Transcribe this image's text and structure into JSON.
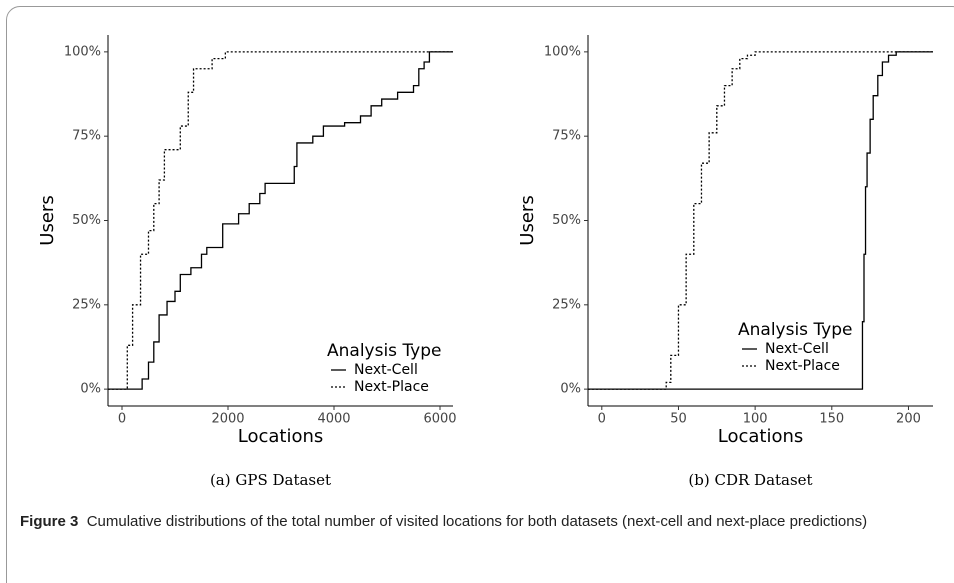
{
  "caption": {
    "label": "Figure 3",
    "text": "Cumulative distributions of the total number of visited locations for both datasets (next-cell and next-place predictions)"
  },
  "chart_data": [
    {
      "type": "step",
      "caption": "(a)  GPS Dataset",
      "x_label": "Locations",
      "y_label": "Users",
      "xlim": [
        -264,
        6245
      ],
      "ylim": [
        -5,
        105
      ],
      "xticks": [
        0,
        2000,
        4000,
        6000
      ],
      "yticks": [
        {
          "value": 0,
          "label": "0%"
        },
        {
          "value": 25,
          "label": "25%"
        },
        {
          "value": 50,
          "label": "50%"
        },
        {
          "value": 75,
          "label": "75%"
        },
        {
          "value": 100,
          "label": "100%"
        }
      ],
      "legend_title": "Analysis Type",
      "legend_position": "bottom-right",
      "series": [
        {
          "name": "Next-Cell",
          "color": "#000000",
          "dash": "solid",
          "x": [
            330,
            380,
            500,
            600,
            700,
            850,
            1000,
            1100,
            1300,
            1500,
            1600,
            1900,
            2200,
            2400,
            2600,
            2700,
            3100,
            3250,
            3300,
            3600,
            3800,
            4200,
            4500,
            4700,
            4900,
            5200,
            5500,
            5600,
            5700,
            5800
          ],
          "values": [
            0,
            3,
            8,
            14,
            22,
            26,
            29,
            34,
            36,
            40,
            42,
            49,
            52,
            55,
            58,
            61,
            61,
            66,
            73,
            75,
            78,
            79,
            81,
            84,
            86,
            88,
            90,
            95,
            97,
            100
          ]
        },
        {
          "name": "Next-Place",
          "color": "#000000",
          "dash": "dotted",
          "x": [
            80,
            100,
            200,
            350,
            500,
            600,
            700,
            800,
            1000,
            1100,
            1250,
            1350,
            1600,
            1700,
            1950
          ],
          "values": [
            0,
            13,
            25,
            40,
            47,
            55,
            62,
            71,
            71,
            78,
            88,
            95,
            95,
            98,
            100
          ]
        }
      ]
    },
    {
      "type": "step",
      "caption": "(b)  CDR Dataset",
      "x_label": "Locations",
      "y_label": "Users",
      "xlim": [
        -9,
        216
      ],
      "ylim": [
        -5,
        105
      ],
      "xticks": [
        0,
        50,
        100,
        150,
        200
      ],
      "yticks": [
        {
          "value": 0,
          "label": "0%"
        },
        {
          "value": 25,
          "label": "25%"
        },
        {
          "value": 50,
          "label": "50%"
        },
        {
          "value": 75,
          "label": "75%"
        },
        {
          "value": 100,
          "label": "100%"
        }
      ],
      "legend_title": "Analysis Type",
      "legend_position": "center-right",
      "series": [
        {
          "name": "Next-Cell",
          "color": "#000000",
          "dash": "solid",
          "x": [
            170,
            170,
            171,
            172,
            173,
            175,
            177,
            180,
            183,
            187,
            192
          ],
          "values": [
            0,
            20,
            40,
            60,
            70,
            80,
            87,
            93,
            97,
            99,
            100
          ]
        },
        {
          "name": "Next-Place",
          "color": "#000000",
          "dash": "dotted",
          "x": [
            42,
            45,
            50,
            55,
            60,
            65,
            70,
            75,
            80,
            85,
            90,
            95,
            100
          ],
          "values": [
            2,
            10,
            25,
            40,
            55,
            67,
            76,
            84,
            90,
            95,
            98,
            99,
            100
          ]
        }
      ]
    }
  ]
}
